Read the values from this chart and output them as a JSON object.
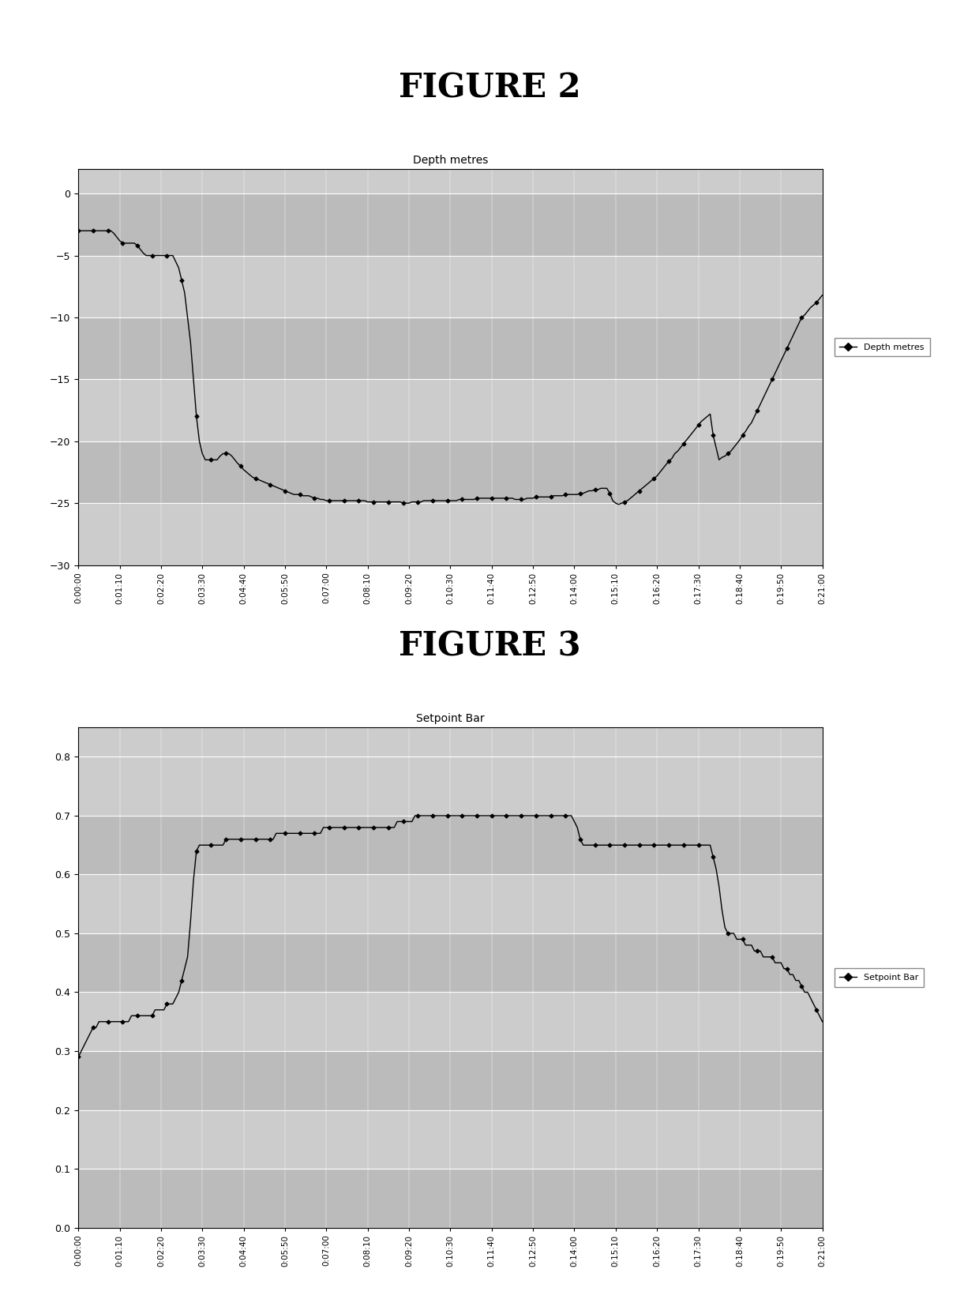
{
  "fig2_title": "FIGURE 2",
  "fig3_title": "FIGURE 3",
  "chart1_title": "Depth metres",
  "chart1_legend": "Depth metres",
  "chart1_ylabel_vals": [
    0,
    -5,
    -10,
    -15,
    -20,
    -25,
    -30
  ],
  "chart1_ylim": [
    -30,
    2
  ],
  "chart2_title": "Setpoint Bar",
  "chart2_legend": "Setpoint Bar",
  "chart2_ylabel_vals": [
    0,
    0.1,
    0.2,
    0.3,
    0.4,
    0.5,
    0.6,
    0.7,
    0.8
  ],
  "chart2_ylim": [
    0,
    0.85
  ],
  "time_labels": [
    "0:00:00",
    "0:01:10",
    "0:02:20",
    "0:03:30",
    "0:04:40",
    "0:05:50",
    "0:07:00",
    "0:08:10",
    "0:09:20",
    "0:10:30",
    "0:11:40",
    "0:12:50",
    "0:14:00",
    "0:15:10",
    "0:16:20",
    "0:17:30",
    "0:18:40",
    "0:19:50",
    "0:21:00"
  ],
  "depth_y": [
    -3,
    -3,
    -3,
    -3,
    -3,
    -3,
    -3,
    -3,
    -3,
    -3,
    -3,
    -3,
    -3.2,
    -3.5,
    -3.8,
    -4,
    -4,
    -4,
    -4,
    -4,
    -4.2,
    -4.5,
    -4.8,
    -5,
    -5,
    -5,
    -5,
    -5,
    -5,
    -5,
    -5,
    -5,
    -5,
    -5.5,
    -6,
    -7,
    -8,
    -10,
    -12,
    -15,
    -18,
    -20,
    -21,
    -21.5,
    -21.5,
    -21.5,
    -21.5,
    -21.5,
    -21.2,
    -21.0,
    -21.0,
    -21.0,
    -21.2,
    -21.5,
    -21.8,
    -22,
    -22.3,
    -22.5,
    -22.7,
    -22.9,
    -23,
    -23.1,
    -23.2,
    -23.3,
    -23.4,
    -23.5,
    -23.6,
    -23.7,
    -23.8,
    -23.9,
    -24,
    -24.1,
    -24.2,
    -24.3,
    -24.3,
    -24.3,
    -24.4,
    -24.4,
    -24.4,
    -24.5,
    -24.6,
    -24.6,
    -24.7,
    -24.7,
    -24.8,
    -24.8,
    -24.8,
    -24.8,
    -24.8,
    -24.8,
    -24.8,
    -24.8,
    -24.8,
    -24.8,
    -24.8,
    -24.8,
    -24.8,
    -24.8,
    -24.9,
    -24.9,
    -24.9,
    -24.9,
    -24.9,
    -24.9,
    -24.9,
    -24.9,
    -24.9,
    -24.9,
    -24.9,
    -24.9,
    -25,
    -25,
    -25,
    -24.9,
    -24.9,
    -24.9,
    -24.9,
    -24.8,
    -24.8,
    -24.8,
    -24.8,
    -24.8,
    -24.8,
    -24.8,
    -24.8,
    -24.8,
    -24.8,
    -24.8,
    -24.8,
    -24.7,
    -24.7,
    -24.7,
    -24.7,
    -24.7,
    -24.7,
    -24.6,
    -24.6,
    -24.6,
    -24.6,
    -24.6,
    -24.6,
    -24.6,
    -24.6,
    -24.6,
    -24.6,
    -24.6,
    -24.6,
    -24.6,
    -24.7,
    -24.7,
    -24.7,
    -24.7,
    -24.6,
    -24.6,
    -24.6,
    -24.5,
    -24.5,
    -24.5,
    -24.5,
    -24.5,
    -24.5,
    -24.4,
    -24.4,
    -24.4,
    -24.4,
    -24.3,
    -24.3,
    -24.3,
    -24.3,
    -24.3,
    -24.2,
    -24.2,
    -24.1,
    -24.0,
    -24.0,
    -23.9,
    -23.9,
    -23.8,
    -23.8,
    -23.8,
    -24.2,
    -24.8,
    -25.0,
    -25.1,
    -25.0,
    -24.9,
    -24.8,
    -24.6,
    -24.4,
    -24.2,
    -24.0,
    -23.8,
    -23.6,
    -23.4,
    -23.2,
    -23.0,
    -22.8,
    -22.5,
    -22.2,
    -21.9,
    -21.6,
    -21.4,
    -21.0,
    -20.8,
    -20.5,
    -20.2,
    -19.9,
    -19.6,
    -19.3,
    -19.0,
    -18.7,
    -18.4,
    -18.2,
    -18.0,
    -17.8,
    -19.5,
    -20.5,
    -21.5,
    -21.3,
    -21.2,
    -21.0,
    -20.8,
    -20.5,
    -20.2,
    -19.9,
    -19.5,
    -19.2,
    -18.8,
    -18.5,
    -18.0,
    -17.5,
    -17.0,
    -16.5,
    -16.0,
    -15.5,
    -15.0,
    -14.5,
    -14.0,
    -13.5,
    -13.0,
    -12.5,
    -12.0,
    -11.5,
    -11.0,
    -10.5,
    -10.0,
    -9.8,
    -9.5,
    -9.2,
    -9.0,
    -8.8,
    -8.5,
    -8.2
  ],
  "setpoint_y": [
    0.29,
    0.3,
    0.31,
    0.32,
    0.33,
    0.34,
    0.34,
    0.35,
    0.35,
    0.35,
    0.35,
    0.35,
    0.35,
    0.35,
    0.35,
    0.35,
    0.35,
    0.35,
    0.36,
    0.36,
    0.36,
    0.36,
    0.36,
    0.36,
    0.36,
    0.36,
    0.37,
    0.37,
    0.37,
    0.37,
    0.38,
    0.38,
    0.38,
    0.39,
    0.4,
    0.42,
    0.44,
    0.46,
    0.52,
    0.59,
    0.64,
    0.65,
    0.65,
    0.65,
    0.65,
    0.65,
    0.65,
    0.65,
    0.65,
    0.65,
    0.66,
    0.66,
    0.66,
    0.66,
    0.66,
    0.66,
    0.66,
    0.66,
    0.66,
    0.66,
    0.66,
    0.66,
    0.66,
    0.66,
    0.66,
    0.66,
    0.66,
    0.67,
    0.67,
    0.67,
    0.67,
    0.67,
    0.67,
    0.67,
    0.67,
    0.67,
    0.67,
    0.67,
    0.67,
    0.67,
    0.67,
    0.67,
    0.67,
    0.68,
    0.68,
    0.68,
    0.68,
    0.68,
    0.68,
    0.68,
    0.68,
    0.68,
    0.68,
    0.68,
    0.68,
    0.68,
    0.68,
    0.68,
    0.68,
    0.68,
    0.68,
    0.68,
    0.68,
    0.68,
    0.68,
    0.68,
    0.68,
    0.68,
    0.69,
    0.69,
    0.69,
    0.69,
    0.69,
    0.69,
    0.7,
    0.7,
    0.7,
    0.7,
    0.7,
    0.7,
    0.7,
    0.7,
    0.7,
    0.7,
    0.7,
    0.7,
    0.7,
    0.7,
    0.7,
    0.7,
    0.7,
    0.7,
    0.7,
    0.7,
    0.7,
    0.7,
    0.7,
    0.7,
    0.7,
    0.7,
    0.7,
    0.7,
    0.7,
    0.7,
    0.7,
    0.7,
    0.7,
    0.7,
    0.7,
    0.7,
    0.7,
    0.7,
    0.7,
    0.7,
    0.7,
    0.7,
    0.7,
    0.7,
    0.7,
    0.7,
    0.7,
    0.7,
    0.7,
    0.7,
    0.7,
    0.7,
    0.7,
    0.7,
    0.69,
    0.68,
    0.66,
    0.65,
    0.65,
    0.65,
    0.65,
    0.65,
    0.65,
    0.65,
    0.65,
    0.65,
    0.65,
    0.65,
    0.65,
    0.65,
    0.65,
    0.65,
    0.65,
    0.65,
    0.65,
    0.65,
    0.65,
    0.65,
    0.65,
    0.65,
    0.65,
    0.65,
    0.65,
    0.65,
    0.65,
    0.65,
    0.65,
    0.65,
    0.65,
    0.65,
    0.65,
    0.65,
    0.65,
    0.65,
    0.65,
    0.65,
    0.65,
    0.65,
    0.65,
    0.65,
    0.65,
    0.63,
    0.61,
    0.58,
    0.54,
    0.51,
    0.5,
    0.5,
    0.5,
    0.49,
    0.49,
    0.49,
    0.48,
    0.48,
    0.48,
    0.47,
    0.47,
    0.47,
    0.46,
    0.46,
    0.46,
    0.46,
    0.45,
    0.45,
    0.45,
    0.44,
    0.44,
    0.43,
    0.43,
    0.42,
    0.42,
    0.41,
    0.4,
    0.4,
    0.39,
    0.38,
    0.37,
    0.36,
    0.35
  ]
}
